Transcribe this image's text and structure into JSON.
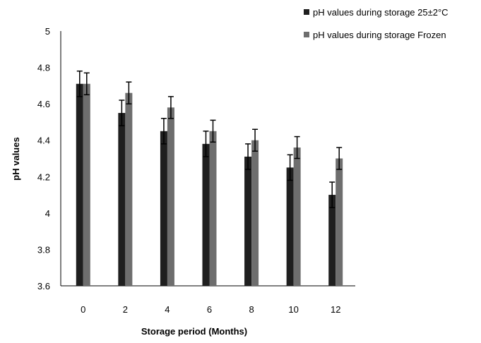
{
  "chart_data": {
    "type": "bar",
    "title": "",
    "xlabel": "Storage period (Months)",
    "ylabel": "pH values",
    "categories": [
      "0",
      "2",
      "4",
      "6",
      "8",
      "10",
      "12"
    ],
    "ylim": [
      3.6,
      5
    ],
    "yticks": [
      "3.6",
      "3.8",
      "4",
      "4.2",
      "4.4",
      "4.6",
      "4.8",
      "5"
    ],
    "grid": false,
    "legend_position": "top-right",
    "series": [
      {
        "name": "pH values during storage 25±2°C",
        "color": "#1f1f1f",
        "values": [
          4.71,
          4.55,
          4.45,
          4.38,
          4.31,
          4.25,
          4.1
        ],
        "errors": [
          0.07,
          0.07,
          0.07,
          0.07,
          0.07,
          0.07,
          0.07
        ]
      },
      {
        "name": "pH values during storage Frozen",
        "color": "#6e6e6e",
        "values": [
          4.71,
          4.66,
          4.58,
          4.45,
          4.4,
          4.36,
          4.3
        ],
        "errors": [
          0.06,
          0.06,
          0.06,
          0.06,
          0.06,
          0.06,
          0.06
        ]
      }
    ]
  }
}
